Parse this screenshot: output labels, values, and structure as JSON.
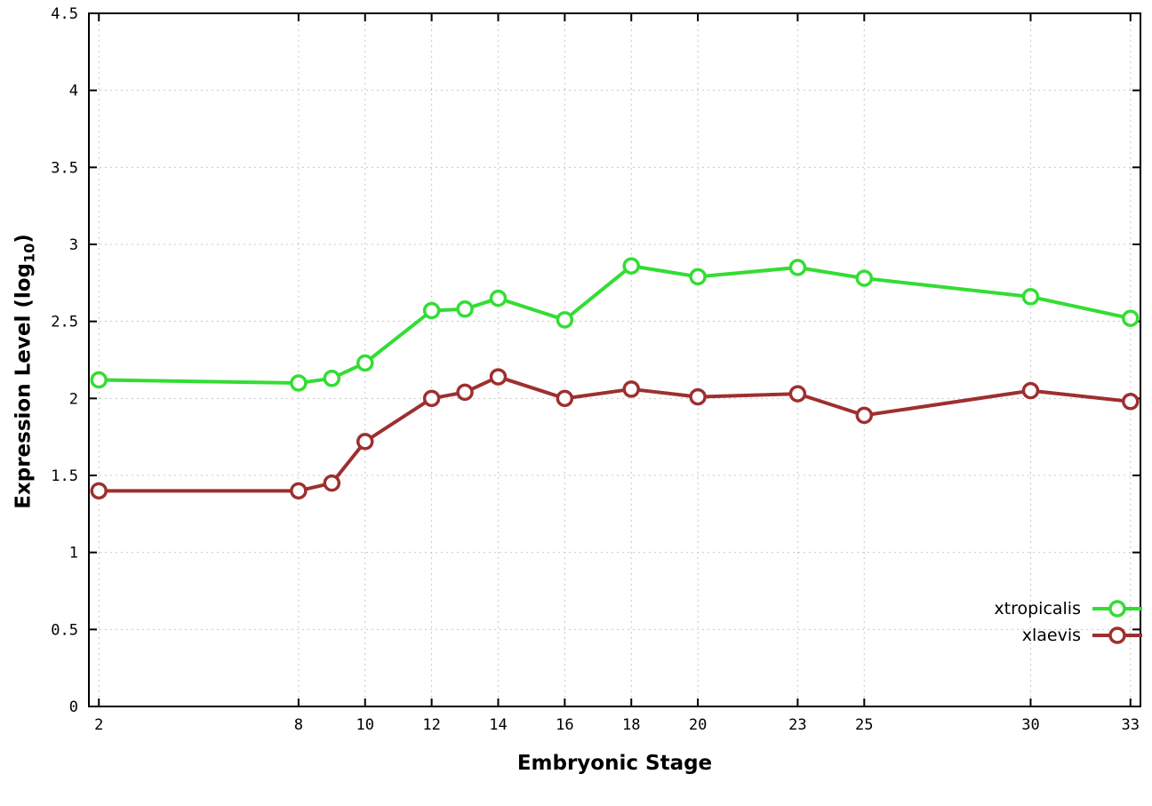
{
  "chart_data": {
    "type": "line",
    "title": "",
    "xlabel": "Embryonic Stage",
    "ylabel": "Expression Level (log10)",
    "ylabel_parts": {
      "prefix": "Expression Level (log",
      "sub": "10",
      "suffix": ")"
    },
    "xlim": [
      1.7,
      33.3
    ],
    "ylim": [
      0,
      4.5
    ],
    "grid": true,
    "legend_position": "bottom-right",
    "xticks": {
      "values": [
        2,
        8,
        10,
        12,
        14,
        16,
        18,
        20,
        23,
        25,
        30,
        33
      ],
      "labels": [
        "2",
        "8",
        "10",
        "12",
        "14",
        "16",
        "18",
        "20",
        "23",
        "25",
        "30",
        "33"
      ]
    },
    "yticks": {
      "values": [
        0,
        0.5,
        1,
        1.5,
        2,
        2.5,
        3,
        3.5,
        4,
        4.5
      ],
      "labels": [
        "0",
        "0.5",
        "1",
        "1.5",
        "2",
        "2.5",
        "3",
        "3.5",
        "4",
        "4.5"
      ]
    },
    "x": [
      2,
      8,
      9,
      10,
      12,
      13,
      14,
      16,
      18,
      20,
      23,
      25,
      30,
      33
    ],
    "series": [
      {
        "name": "xtropicalis",
        "color": "#33dd33",
        "values": [
          2.12,
          2.1,
          2.13,
          2.23,
          2.57,
          2.58,
          2.65,
          2.51,
          2.86,
          2.79,
          2.85,
          2.78,
          2.66,
          2.52
        ]
      },
      {
        "name": "xlaevis",
        "color": "#9e2f2f",
        "values": [
          1.4,
          1.4,
          1.45,
          1.72,
          2.0,
          2.04,
          2.14,
          2.0,
          2.06,
          2.01,
          2.03,
          1.89,
          2.05,
          1.98
        ]
      }
    ],
    "colors": {
      "grid": "#c8c8c8",
      "axis": "#000000",
      "background": "#ffffff"
    }
  },
  "legend": {
    "items": [
      {
        "label": "xtropicalis"
      },
      {
        "label": "xlaevis"
      }
    ]
  }
}
